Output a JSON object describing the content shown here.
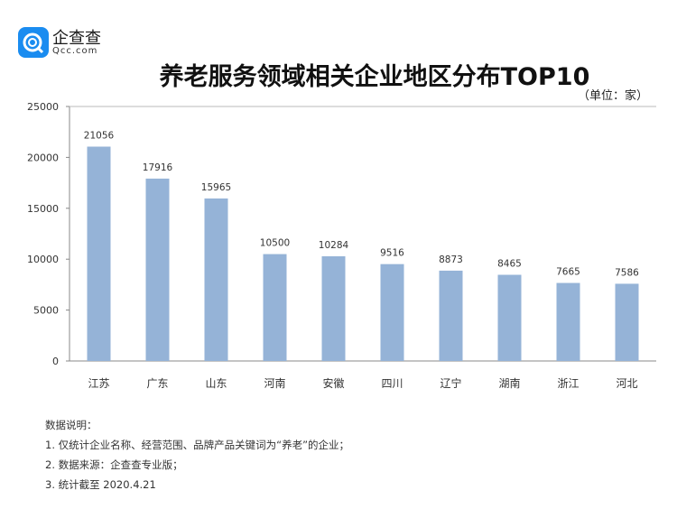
{
  "logo": {
    "name": "企查查",
    "sub": "Qcc.com",
    "color": "#1a8cf0"
  },
  "chart_data": {
    "type": "bar",
    "title": "养老服务领域相关企业地区分布TOP10",
    "unit": "（单位：家）",
    "categories": [
      "江苏",
      "广东",
      "山东",
      "河南",
      "安徽",
      "四川",
      "辽宁",
      "湖南",
      "浙江",
      "河北"
    ],
    "values": [
      21056,
      17916,
      15965,
      10500,
      10284,
      9516,
      8873,
      8465,
      7665,
      7586
    ],
    "ylim": [
      0,
      25000
    ],
    "yticks": [
      0,
      5000,
      10000,
      15000,
      20000,
      25000
    ],
    "grid": false,
    "bar_color": "#95b3d7"
  },
  "notes": [
    "数据说明：",
    "1. 仅统计企业名称、经营范围、品牌产品关键词为“养老”的企业；",
    "2. 数据来源：企查查专业版；",
    "3. 统计截至 2020.4.21"
  ]
}
